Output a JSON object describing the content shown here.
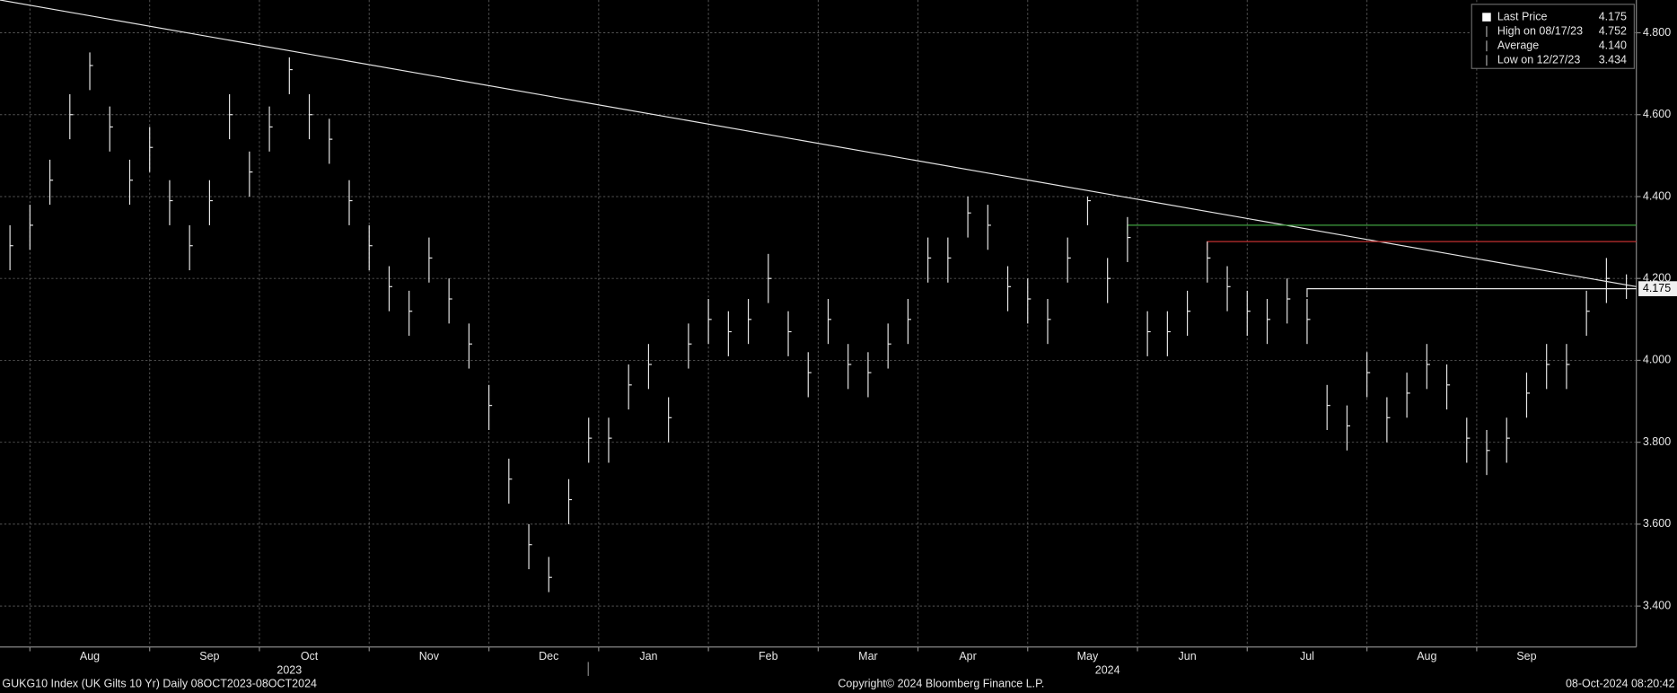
{
  "chart_data": {
    "type": "ohlc",
    "footer_left": "GUKG10 Index (UK Gilts 10 Yr)  Daily 08OCT2023-08OCT2024",
    "footer_center": "Copyright© 2024 Bloomberg Finance L.P.",
    "footer_right": "08-Oct-2024 08:20:42",
    "categories": [
      null,
      null,
      null,
      null,
      "Aug",
      null,
      null,
      null,
      null,
      null,
      "Sep",
      null,
      null,
      null,
      null,
      "Oct",
      null,
      null,
      null,
      null,
      null,
      "Nov",
      null,
      null,
      null,
      null,
      null,
      "Dec",
      null,
      null,
      null,
      null,
      "Jan",
      null,
      null,
      null,
      null,
      null,
      "Feb",
      null,
      null,
      null,
      null,
      "Mar",
      null,
      null,
      null,
      null,
      "Apr",
      null,
      null,
      null,
      null,
      null,
      "May",
      null,
      null,
      null,
      null,
      "Jun",
      null,
      null,
      null,
      null,
      null,
      "Jul",
      null,
      null,
      null,
      null,
      null,
      "Aug",
      null,
      null,
      null,
      null,
      "Sep",
      null,
      null,
      null,
      null,
      null
    ],
    "year_categories": [
      null,
      null,
      null,
      null,
      null,
      null,
      null,
      null,
      null,
      null,
      null,
      null,
      null,
      null,
      "2023",
      null,
      null,
      null,
      null,
      null,
      null,
      null,
      null,
      null,
      null,
      null,
      null,
      null,
      null,
      null,
      null,
      null,
      null,
      null,
      null,
      null,
      null,
      null,
      null,
      null,
      null,
      null,
      null,
      null,
      null,
      null,
      null,
      null,
      null,
      null,
      null,
      null,
      null,
      null,
      null,
      "2024",
      null,
      null,
      null,
      null,
      null,
      null,
      null,
      null,
      null,
      null,
      null,
      null,
      null,
      null,
      null,
      null,
      null,
      null,
      null,
      null,
      null,
      null,
      null,
      null,
      null,
      null
    ],
    "series": [
      {
        "name": "Last Price",
        "color": "#e6e6e6",
        "high": [
          4.33,
          4.38,
          4.49,
          4.65,
          4.752,
          4.62,
          4.49,
          4.57,
          4.44,
          4.33,
          4.44,
          4.65,
          4.51,
          4.62,
          4.74,
          4.65,
          4.59,
          4.44,
          4.33,
          4.23,
          4.17,
          4.3,
          4.2,
          4.09,
          3.94,
          3.76,
          3.6,
          3.52,
          3.71,
          3.86,
          3.86,
          3.99,
          4.04,
          3.91,
          4.09,
          4.15,
          4.12,
          4.15,
          4.26,
          4.12,
          4.02,
          4.15,
          4.04,
          4.02,
          4.09,
          4.15,
          4.3,
          4.3,
          4.4,
          4.38,
          4.23,
          4.2,
          4.15,
          4.3,
          4.4,
          4.25,
          4.35,
          4.12,
          4.12,
          4.17,
          4.29,
          4.23,
          4.17,
          4.15,
          4.2,
          4.15,
          3.94,
          3.89,
          4.02,
          3.91,
          3.97,
          4.04,
          3.99,
          3.86,
          3.83,
          3.86,
          3.97,
          4.04,
          4.04,
          4.17,
          4.25,
          4.21
        ],
        "low": [
          4.22,
          4.27,
          4.38,
          4.54,
          4.66,
          4.51,
          4.38,
          4.46,
          4.33,
          4.22,
          4.33,
          4.54,
          4.4,
          4.51,
          4.65,
          4.54,
          4.48,
          4.33,
          4.22,
          4.12,
          4.06,
          4.19,
          4.09,
          3.98,
          3.83,
          3.65,
          3.49,
          3.434,
          3.6,
          3.75,
          3.75,
          3.88,
          3.93,
          3.8,
          3.98,
          4.04,
          4.01,
          4.04,
          4.14,
          4.01,
          3.91,
          4.04,
          3.93,
          3.91,
          3.98,
          4.04,
          4.19,
          4.19,
          4.3,
          4.27,
          4.12,
          4.09,
          4.04,
          4.19,
          4.33,
          4.14,
          4.24,
          4.01,
          4.01,
          4.06,
          4.19,
          4.12,
          4.06,
          4.04,
          4.09,
          4.04,
          3.83,
          3.78,
          3.91,
          3.8,
          3.86,
          3.93,
          3.88,
          3.75,
          3.72,
          3.75,
          3.86,
          3.93,
          3.93,
          4.06,
          4.14,
          4.15
        ],
        "close": [
          4.28,
          4.33,
          4.44,
          4.6,
          4.72,
          4.57,
          4.44,
          4.52,
          4.39,
          4.28,
          4.39,
          4.6,
          4.46,
          4.57,
          4.71,
          4.6,
          4.54,
          4.39,
          4.28,
          4.18,
          4.12,
          4.25,
          4.15,
          4.04,
          3.89,
          3.71,
          3.55,
          3.47,
          3.66,
          3.81,
          3.81,
          3.94,
          3.99,
          3.86,
          4.04,
          4.1,
          4.07,
          4.1,
          4.2,
          4.07,
          3.97,
          4.1,
          3.99,
          3.97,
          4.04,
          4.1,
          4.25,
          4.25,
          4.36,
          4.33,
          4.18,
          4.15,
          4.1,
          4.25,
          4.39,
          4.2,
          4.3,
          4.07,
          4.07,
          4.12,
          4.25,
          4.18,
          4.12,
          4.1,
          4.15,
          4.1,
          3.89,
          3.84,
          3.97,
          3.86,
          3.92,
          3.99,
          3.94,
          3.81,
          3.78,
          3.81,
          3.92,
          3.99,
          3.99,
          4.12,
          4.2,
          4.175
        ]
      }
    ],
    "trendline": {
      "color": "#e6e6e6",
      "values": [
        4.88,
        4.18
      ]
    },
    "levels": [
      {
        "value": 4.33,
        "color": "#3f9f3f",
        "start": 56
      },
      {
        "value": 4.29,
        "color": "#c03030",
        "start": 60
      },
      {
        "value": 4.175,
        "color": "#e6e6e6",
        "start": 65
      }
    ],
    "legend": [
      {
        "name": "Last Price",
        "value": 4.175,
        "value_label": "4.175"
      },
      {
        "name": "High on 08/17/23",
        "value": 4.752,
        "value_label": "4.752"
      },
      {
        "name": "Average",
        "value": 4.14,
        "value_label": "4.140"
      },
      {
        "name": "Low on 12/27/23",
        "value": 3.434,
        "value_label": "3.434"
      }
    ],
    "ylim": [
      3.3,
      4.88
    ],
    "yticks": [
      {
        "value": 3.4,
        "label": "3.400"
      },
      {
        "value": 3.6,
        "label": "3.600"
      },
      {
        "value": 3.8,
        "label": "3.800"
      },
      {
        "value": 4.0,
        "label": "4.000"
      },
      {
        "value": 4.2,
        "label": "4.200"
      },
      {
        "value": 4.4,
        "label": "4.400"
      },
      {
        "value": 4.6,
        "label": "4.600"
      },
      {
        "value": 4.8,
        "label": "4.800"
      }
    ],
    "grid": true
  }
}
